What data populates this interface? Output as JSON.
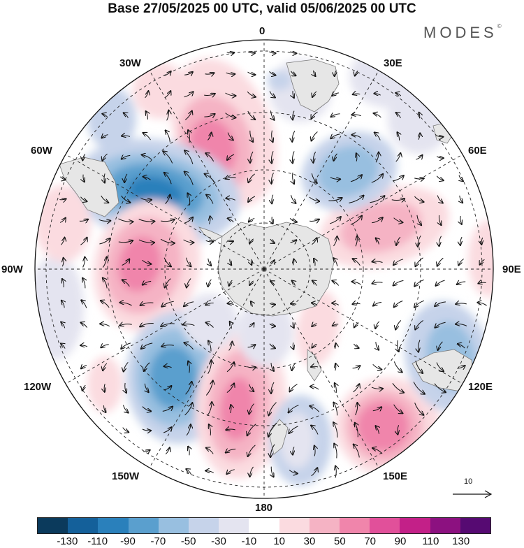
{
  "header": {
    "title": "Base 27/05/2025 00 UTC, valid 05/06/2025 00 UTC",
    "brand": "MODES",
    "brand_mark": "©"
  },
  "map": {
    "projection": "south-polar-stereographic",
    "longitude_labels": {
      "lon_0": "0",
      "lon_30E": "30E",
      "lon_60E": "60E",
      "lon_90E": "90E",
      "lon_120E": "120E",
      "lon_150E": "150E",
      "lon_180": "180",
      "lon_150W": "150W",
      "lon_120W": "120W",
      "lon_90W": "90W",
      "lon_60W": "60W",
      "lon_30W": "30W"
    },
    "reference_vector_label": "10",
    "colors": {
      "land": "#e6e6e6",
      "coast": "#7a7a7a",
      "grid": "#222222",
      "vector": "#111111"
    }
  },
  "legend": {
    "colors": [
      "#0b3a5c",
      "#14609a",
      "#2a80bb",
      "#5a9fce",
      "#98bfe0",
      "#c6d3ea",
      "#e4e4f0",
      "#ffffff",
      "#fbdbe0",
      "#f5b3c4",
      "#f085ab",
      "#e1509a",
      "#c32088",
      "#8c1180",
      "#560a72"
    ],
    "ticks": [
      "-130",
      "-110",
      "-90",
      "-70",
      "-50",
      "-30",
      "-10",
      "10",
      "30",
      "50",
      "70",
      "90",
      "110",
      "130"
    ]
  }
}
